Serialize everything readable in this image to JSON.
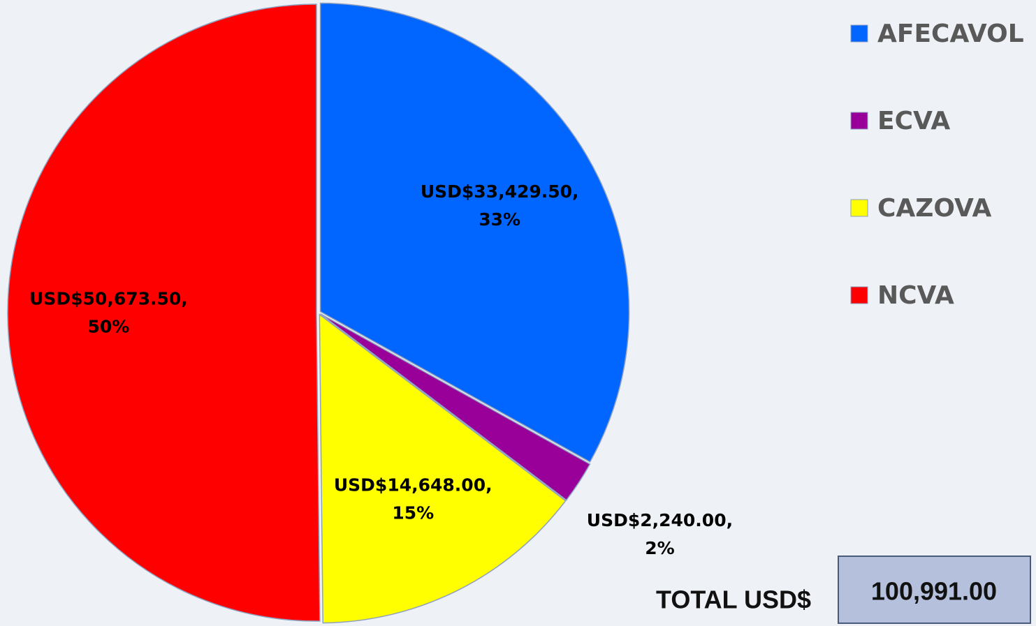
{
  "chart_data": {
    "type": "pie",
    "categories": [
      "AFECAVOL",
      "ECVA",
      "CAZOVA",
      "NCVA"
    ],
    "values": [
      33429.5,
      2240,
      14648,
      50673.5
    ],
    "value_labels": [
      "USD$33,429.50,",
      "USD$2,240.00,",
      "USD$14,648.00,",
      "USD$50,673.50,"
    ],
    "percents": [
      33,
      2,
      15,
      50
    ],
    "percent_labels": [
      "33%",
      "2%",
      "15%",
      "50%"
    ],
    "colors": [
      "#0066ff",
      "#990099",
      "#ffff00",
      "#ff0000"
    ],
    "legend": "right",
    "total": {
      "label": "TOTAL USD$",
      "value": 100991,
      "value_label": "100,991.00"
    }
  }
}
